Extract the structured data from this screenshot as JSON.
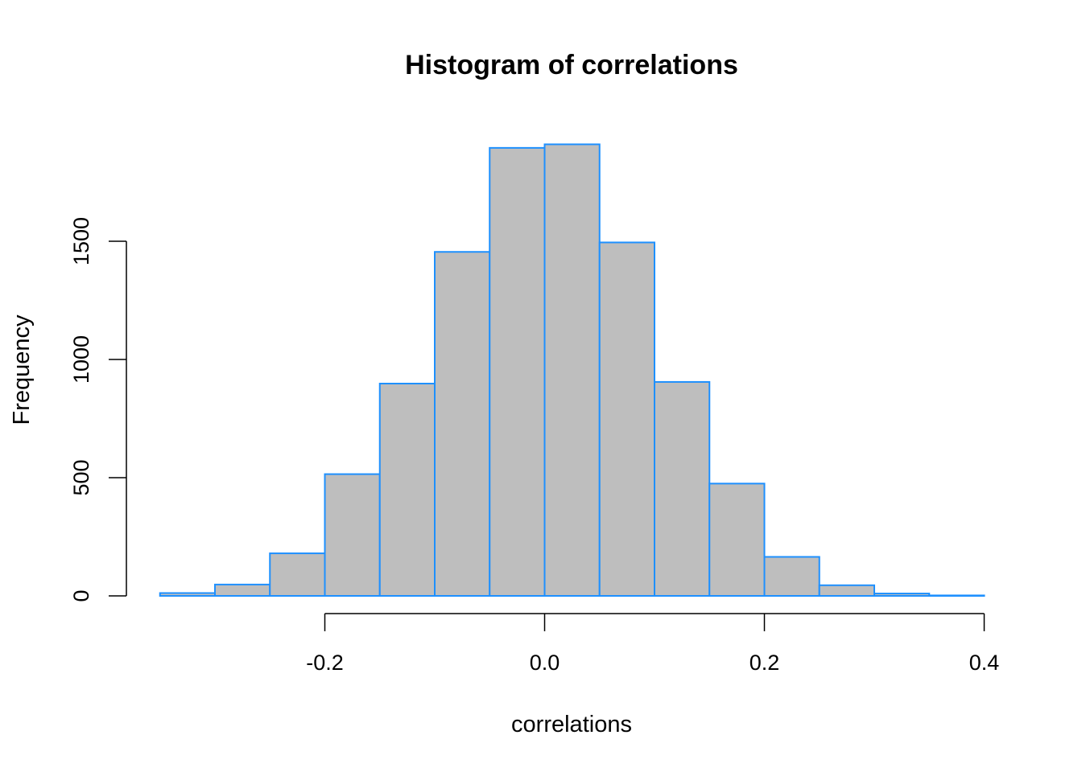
{
  "chart_data": {
    "type": "bar",
    "title": "Histogram of correlations",
    "xlabel": "correlations",
    "ylabel": "Frequency",
    "bin_width": 0.05,
    "bins": [
      {
        "x0": -0.35,
        "x1": -0.3,
        "count": 12
      },
      {
        "x0": -0.3,
        "x1": -0.25,
        "count": 48
      },
      {
        "x0": -0.25,
        "x1": -0.2,
        "count": 180
      },
      {
        "x0": -0.2,
        "x1": -0.15,
        "count": 515
      },
      {
        "x0": -0.15,
        "x1": -0.1,
        "count": 898
      },
      {
        "x0": -0.1,
        "x1": -0.05,
        "count": 1455
      },
      {
        "x0": -0.05,
        "x1": 0.0,
        "count": 1895
      },
      {
        "x0": 0.0,
        "x1": 0.05,
        "count": 1910
      },
      {
        "x0": 0.05,
        "x1": 0.1,
        "count": 1495
      },
      {
        "x0": 0.1,
        "x1": 0.15,
        "count": 905
      },
      {
        "x0": 0.15,
        "x1": 0.2,
        "count": 475
      },
      {
        "x0": 0.2,
        "x1": 0.25,
        "count": 165
      },
      {
        "x0": 0.25,
        "x1": 0.3,
        "count": 45
      },
      {
        "x0": 0.3,
        "x1": 0.35,
        "count": 10
      },
      {
        "x0": 0.35,
        "x1": 0.4,
        "count": 2
      }
    ],
    "xlim": [
      -0.35,
      0.4
    ],
    "ylim": [
      0,
      1910
    ],
    "x_ticks": [
      -0.2,
      0.0,
      0.2,
      0.4
    ],
    "x_tick_labels": [
      "-0.2",
      "0.0",
      "0.2",
      "0.4"
    ],
    "y_ticks": [
      0,
      500,
      1000,
      1500
    ],
    "y_tick_labels": [
      "0",
      "500",
      "1000",
      "1500"
    ],
    "grid": false,
    "legend": "none",
    "colors": {
      "bar_fill": "#bebebe",
      "bar_border": "#1e90ff",
      "axis": "#000000"
    }
  }
}
